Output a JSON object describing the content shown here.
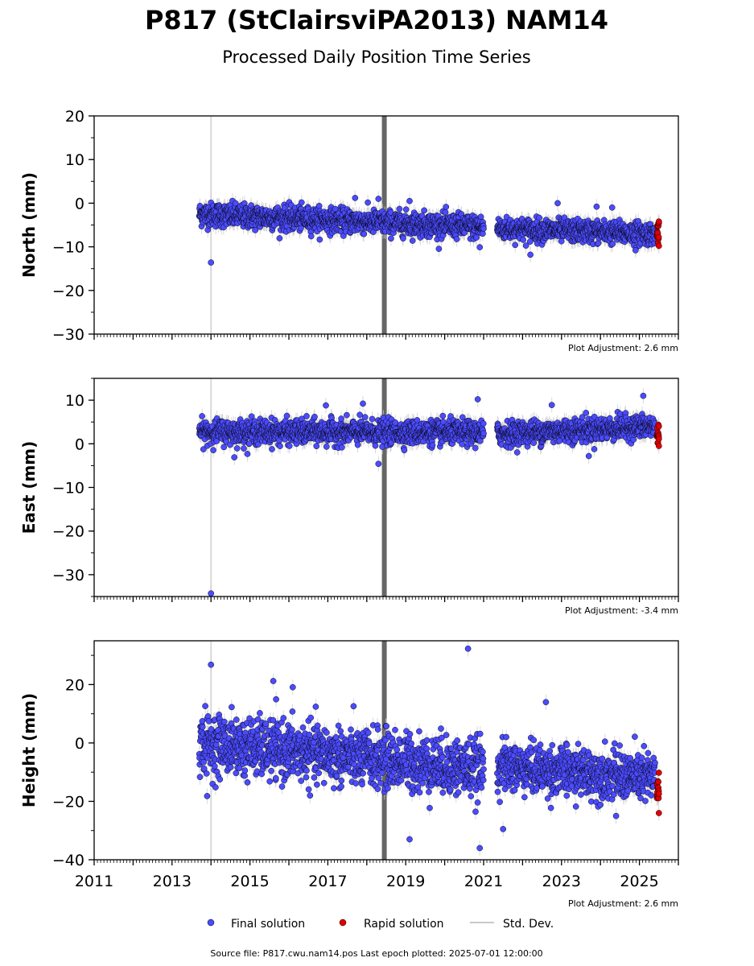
{
  "title": "P817 (StClairsviPA2013) NAM14",
  "subtitle": "Processed Daily Position Time Series",
  "footer": "Source file: P817.cwu.nam14.pos  Last epoch plotted: 2025-07-01 12:00:00",
  "legend": {
    "final": "Final solution",
    "rapid": "Rapid solution",
    "std": "Std. Dev."
  },
  "colors": {
    "final": "#4b4bff",
    "rapid": "#e00000",
    "std": "#c8c8c8",
    "event_line": "#666666",
    "antenna_line": "#d0d0d0"
  },
  "chart_data": [
    {
      "type": "scatter",
      "ylabel": "North (mm)",
      "xlim": [
        2011,
        2026
      ],
      "ylim": [
        -30,
        20
      ],
      "yticks": [
        20,
        10,
        0,
        -10,
        -20,
        -30
      ],
      "adjustment": "Plot Adjustment: 2.6 mm",
      "event_x": 2018.45,
      "antenna_x": 2014.0,
      "series": [
        {
          "name": "Final solution",
          "segments": [
            {
              "x": [
                2013.7,
                2021.0
              ],
              "y": [
                -2.5,
                -5.5
              ],
              "spread": 1.8
            },
            {
              "x": [
                2021.35,
                2025.4
              ],
              "y": [
                -5.8,
                -7.0
              ],
              "spread": 1.7
            }
          ],
          "outliers": [
            [
              2014.0,
              -13.6
            ],
            [
              2017.7,
              1.2
            ],
            [
              2018.3,
              1.0
            ],
            [
              2019.1,
              0.5
            ],
            [
              2020.9,
              -10.1
            ],
            [
              2022.2,
              -11.8
            ],
            [
              2022.9,
              0.0
            ],
            [
              2023.9,
              -0.8
            ],
            [
              2024.3,
              -1.0
            ],
            [
              2024.9,
              -10.8
            ]
          ]
        },
        {
          "name": "Rapid solution",
          "segments": [
            {
              "x": [
                2025.45,
                2025.5
              ],
              "y": [
                -7.0,
                -7.0
              ],
              "spread": 1.5
            }
          ],
          "outliers": [
            [
              2025.5,
              -4.2
            ],
            [
              2025.5,
              -9.8
            ]
          ]
        }
      ]
    },
    {
      "type": "scatter",
      "ylabel": "East (mm)",
      "xlim": [
        2011,
        2026
      ],
      "ylim": [
        -35,
        15
      ],
      "yticks": [
        10,
        0,
        -10,
        -20,
        -30
      ],
      "adjustment": "Plot Adjustment: -3.4 mm",
      "event_x": 2018.45,
      "antenna_x": 2014.0,
      "series": [
        {
          "name": "Final solution",
          "segments": [
            {
              "x": [
                2013.7,
                2021.0
              ],
              "y": [
                2.8,
                2.5
              ],
              "spread": 1.8
            },
            {
              "x": [
                2021.35,
                2025.4
              ],
              "y": [
                2.3,
                4.0
              ],
              "spread": 1.8
            }
          ],
          "outliers": [
            [
              2014.0,
              -34.3
            ],
            [
              2017.9,
              9.2
            ],
            [
              2018.3,
              -4.6
            ],
            [
              2020.85,
              10.2
            ],
            [
              2022.75,
              8.9
            ],
            [
              2025.1,
              11.0
            ],
            [
              2016.95,
              8.8
            ],
            [
              2014.6,
              -3.1
            ],
            [
              2023.7,
              -2.8
            ]
          ]
        },
        {
          "name": "Rapid solution",
          "segments": [
            {
              "x": [
                2025.45,
                2025.5
              ],
              "y": [
                2.0,
                2.0
              ],
              "spread": 1.5
            }
          ],
          "outliers": [
            [
              2025.5,
              4.0
            ],
            [
              2025.5,
              -0.5
            ]
          ]
        }
      ]
    },
    {
      "type": "scatter",
      "ylabel": "Height (mm)",
      "xlim": [
        2011,
        2026
      ],
      "ylim": [
        -40,
        35
      ],
      "yticks": [
        20,
        0,
        -20,
        -40
      ],
      "xticks": [
        2011,
        2013,
        2015,
        2017,
        2019,
        2021,
        2023,
        2025
      ],
      "adjustment": "Plot Adjustment: 2.6 mm",
      "event_x": 2018.45,
      "antenna_x": 2014.0,
      "series": [
        {
          "name": "Final solution",
          "segments": [
            {
              "x": [
                2013.7,
                2021.0
              ],
              "y": [
                0.0,
                -9.0
              ],
              "spread": 6.5
            },
            {
              "x": [
                2021.35,
                2025.4
              ],
              "y": [
                -8.0,
                -12.0
              ],
              "spread": 5.5
            }
          ],
          "outliers": [
            [
              2014.0,
              26.8
            ],
            [
              2015.6,
              21.2
            ],
            [
              2020.6,
              32.3
            ],
            [
              2020.9,
              -36.0
            ],
            [
              2019.1,
              -33.0
            ],
            [
              2013.9,
              -18.2
            ],
            [
              2016.1,
              19.1
            ],
            [
              2021.5,
              -29.5
            ],
            [
              2022.6,
              14.0
            ],
            [
              2024.4,
              -25.0
            ]
          ]
        },
        {
          "name": "Rapid solution",
          "segments": [
            {
              "x": [
                2025.45,
                2025.5
              ],
              "y": [
                -16.5,
                -16.5
              ],
              "spread": 4.0
            }
          ],
          "outliers": [
            [
              2025.5,
              -10.2
            ],
            [
              2025.5,
              -24.0
            ]
          ]
        }
      ]
    }
  ]
}
